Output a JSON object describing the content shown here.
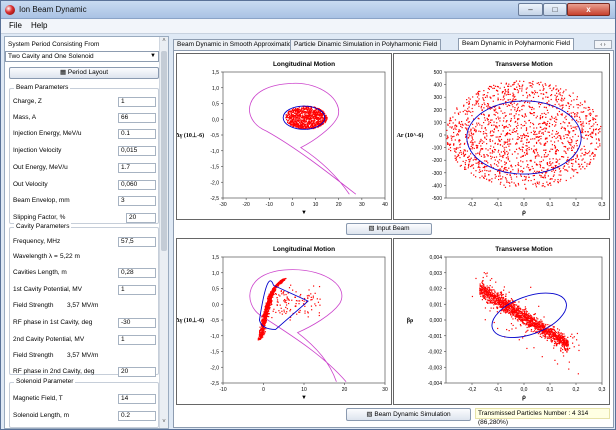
{
  "window": {
    "title": "Ion Beam Dynamic",
    "min": "–",
    "max": "□",
    "close": "x"
  },
  "menu": {
    "file": "File",
    "help": "Help"
  },
  "sidebar": {
    "system_label": "System Period Consisting From",
    "system_value": "Two Cavity and One Solenoid",
    "period_layout_button": "Period Layout",
    "beam_params_title": "Beam Parameters",
    "beam_params": [
      {
        "label": "Charge, Z",
        "value": "1"
      },
      {
        "label": "Mass, A",
        "value": "66"
      },
      {
        "label": "Injection Energy, MeV/u",
        "value": "0.1"
      },
      {
        "label": "Injection Velocity",
        "value": "0,015"
      },
      {
        "label": "Out Energy, MeV/u",
        "value": "1.7"
      },
      {
        "label": "Out Velocity",
        "value": "0,060"
      },
      {
        "label": "Beam Envelop, mm",
        "value": "3"
      },
      {
        "label": "Slipping Factor, %",
        "value": "20"
      }
    ],
    "cavity_title": "Cavity Parameters",
    "frequency_label": "Frequency, MHz",
    "frequency_value": "57,5",
    "wavelength_label": "Wavelength λ =",
    "wavelength_value": "5,22 m",
    "cavities_length_label": "Cavities Length, m",
    "cavities_length_value": "0,28",
    "cavity1_potential_label": "1st Cavity Potential, MV",
    "cavity1_potential_value": "1",
    "field_strength_label_1": "Field Strength",
    "field_strength_value_1": "3,57 MV/m",
    "rf_phase1_label": "RF phase in 1st Cavity, deg",
    "rf_phase1_value": "-30",
    "cavity2_potential_label": "2nd Cavity Potential, MV",
    "cavity2_potential_value": "1",
    "field_strength_label_2": "Field Strength",
    "field_strength_value_2": "3,57 MV/m",
    "rf_phase2_label": "RF phase in 2nd Cavity, deg",
    "rf_phase2_value": "20",
    "solenoid_title": "Solenoid Parameter",
    "magnetic_label": "Magnetic Field, T",
    "magnetic_value": "14",
    "solenoid_length_label": "Solenoid Length, m",
    "solenoid_length_value": "0.2",
    "scroll_up": "˄",
    "scroll_down": "˅"
  },
  "tabs": [
    {
      "label": "Beam Dynamic in Smooth Approximation"
    },
    {
      "label": "Particle Dinamic Simulation in Polyharmonic Field"
    },
    {
      "label": "Beam Dynamic in Polyharmonic Field"
    }
  ],
  "tab_nav": "‹ ›",
  "buttons": {
    "input_beam": "Input Beam",
    "simulation": "Beam Dynamic Simulation"
  },
  "status_note": "Transmissed Particles Number : 4 314 (86,280%)",
  "colors": {
    "particles": "#ff0000",
    "ellipse": "#0000cc",
    "separatrix": "#cc44cc"
  },
  "chart_data": [
    {
      "type": "scatter",
      "title": "Longitudinal Motion",
      "ylabel": "Δγ (10⊥-6)",
      "xlabel": "▼",
      "xlim": [
        -30,
        40
      ],
      "ylim": [
        -2.5,
        1.5
      ],
      "xticks": [
        "-30",
        "-20",
        "-10",
        "0",
        "10",
        "20",
        "30",
        "40"
      ],
      "yticks": [
        "1,5",
        "1,0",
        "0,5",
        "0,0",
        "-0,5",
        "-1,0",
        "-1,5",
        "-2,0",
        "-2,5"
      ],
      "series": [
        {
          "kind": "particles",
          "shape": "ellipse",
          "center": [
            6,
            0.05
          ],
          "radius": [
            9,
            0.37
          ]
        },
        {
          "kind": "ellipse",
          "center": [
            5,
            0.05
          ],
          "radius": [
            9,
            0.37
          ]
        },
        {
          "kind": "separatrix"
        }
      ]
    },
    {
      "type": "scatter",
      "title": "Transverse Motion",
      "ylabel": "Ar (10^-6)",
      "xlabel": "ρ",
      "xlim": [
        -0.3,
        0.3
      ],
      "ylim": [
        -500,
        500
      ],
      "xticks": [
        "-0,2",
        "-0,1",
        "0,0",
        "0,1",
        "0,2",
        "0,3"
      ],
      "yticks": [
        "500",
        "400",
        "300",
        "200",
        "100",
        "0",
        "-100",
        "-200",
        "-300",
        "-400",
        "-500"
      ],
      "series": [
        {
          "kind": "particles",
          "shape": "ellipse",
          "center": [
            0.0,
            0
          ],
          "radius": [
            0.3,
            430
          ]
        },
        {
          "kind": "ellipse",
          "center": [
            0.0,
            -20
          ],
          "radius": [
            0.22,
            290
          ]
        }
      ]
    },
    {
      "type": "scatter",
      "title": "Longitudinal Motion",
      "ylabel": "Δγ (10⊥-6)",
      "xlabel": "▼",
      "xlim": [
        -10,
        30
      ],
      "ylim": [
        -2.5,
        1.5
      ],
      "xticks": [
        "-10",
        "0",
        "10",
        "20",
        "30"
      ],
      "yticks": [
        "1,5",
        "1,0",
        "0,5",
        "0,0",
        "-0,5",
        "-1,0",
        "-1,5",
        "-2,0",
        "-2,5"
      ],
      "series": [
        {
          "kind": "particles",
          "shape": "sheared",
          "center": [
            2,
            0.3
          ],
          "span": [
            5,
            0.7
          ],
          "tilt": 0.9
        },
        {
          "kind": "ellipse",
          "shape": "leaf",
          "points": [
            [
              -1,
              -0.5
            ],
            [
              1,
              0.6
            ],
            [
              11,
              0.1
            ],
            [
              2,
              -0.8
            ]
          ]
        },
        {
          "kind": "separatrix"
        }
      ]
    },
    {
      "type": "scatter",
      "title": "Transverse Motion",
      "ylabel": "βρ",
      "xlabel": "ρ",
      "xlim": [
        -0.3,
        0.3
      ],
      "ylim": [
        -0.004,
        0.004
      ],
      "xticks": [
        "-0,2",
        "-0,1",
        "0,0",
        "0,1",
        "0,2",
        "0,3"
      ],
      "yticks": [
        "0,004",
        "0,003",
        "0,002",
        "0,001",
        "0,000",
        "-0,001",
        "-0,002",
        "-0,003",
        "-0,004"
      ],
      "series": [
        {
          "kind": "particles",
          "shape": "band",
          "center": [
            0.0,
            0.0002
          ],
          "slope": -0.0105,
          "width": 0.0008,
          "xspan": [
            -0.17,
            0.17
          ]
        },
        {
          "kind": "ellipse",
          "center": [
            0.02,
            0.0003
          ],
          "radius": [
            0.15,
            0.0012
          ],
          "tilt": -0.6
        }
      ]
    }
  ]
}
